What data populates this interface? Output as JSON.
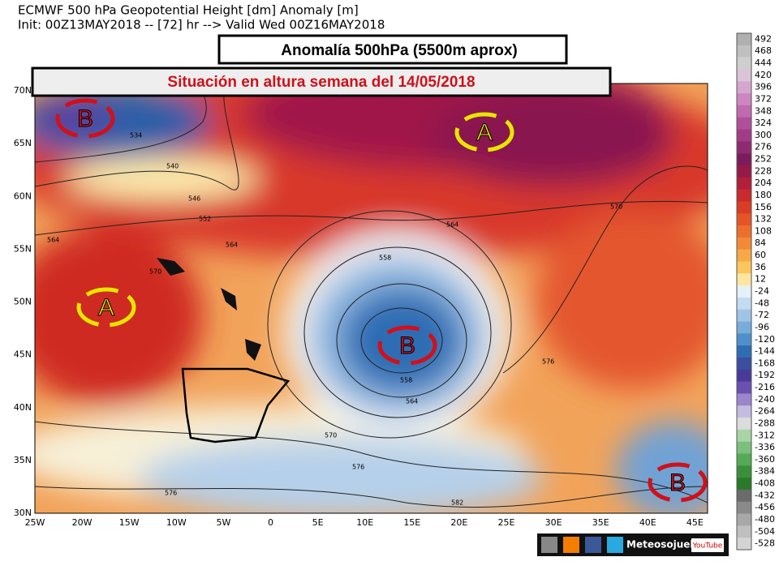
{
  "header": {
    "line1": "ECMWF 500 hPa Geopotential Height [dm] Anomaly [m]",
    "line2": "Init: 00Z13MAY2018 -- [72] hr --> Valid Wed 00Z16MAY2018"
  },
  "banners": {
    "main": "Anomalía 500hPa (5500m aprox)",
    "sub": "Situación en altura semana del 14/05/2018"
  },
  "lat_labels": [
    "70N",
    "65N",
    "60N",
    "55N",
    "50N",
    "45N",
    "40N",
    "35N",
    "30N"
  ],
  "lon_labels": [
    "25W",
    "20W",
    "15W",
    "10W",
    "5W",
    "0",
    "5E",
    "10E",
    "15E",
    "20E",
    "25E",
    "30E",
    "35E",
    "40E",
    "45E"
  ],
  "colorbar": [
    492,
    468,
    444,
    420,
    396,
    372,
    348,
    324,
    300,
    276,
    252,
    228,
    204,
    180,
    156,
    132,
    108,
    84,
    60,
    36,
    12,
    -24,
    -48,
    -72,
    -96,
    -120,
    -144,
    -168,
    -192,
    -216,
    -240,
    -264,
    -288,
    -312,
    -336,
    -360,
    -384,
    -408,
    -432,
    -456,
    -480,
    -504,
    -528
  ],
  "contour_labels": [
    "534",
    "540",
    "546",
    "552",
    "564",
    "564",
    "564",
    "558",
    "558",
    "564",
    "570",
    "570",
    "576",
    "576",
    "576",
    "582",
    "570"
  ],
  "systems": [
    "B",
    "A",
    "A",
    "B",
    "B"
  ],
  "footer": {
    "brand": "Meteosojuela",
    "video": "YouTube"
  }
}
